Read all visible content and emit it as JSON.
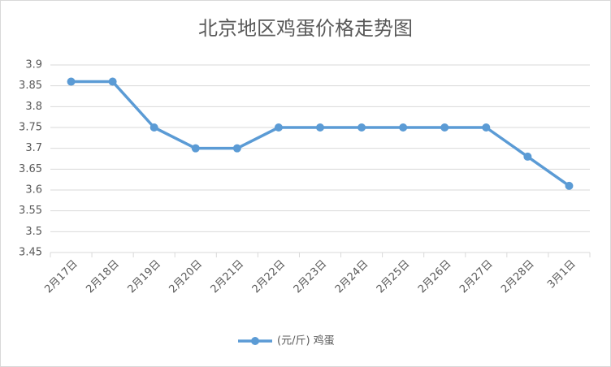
{
  "chart_data": {
    "type": "line",
    "title": "北京地区鸡蛋价格走势图",
    "categories": [
      "2月17日",
      "2月18日",
      "2月19日",
      "2月20日",
      "2月21日",
      "2月22日",
      "2月23日",
      "2月24日",
      "2月25日",
      "2月26日",
      "2月27日",
      "2月28日",
      "3月1日"
    ],
    "series": [
      {
        "name": "(元/斤) 鸡蛋",
        "color": "#5b9bd5",
        "values": [
          3.86,
          3.86,
          3.75,
          3.7,
          3.7,
          3.75,
          3.75,
          3.75,
          3.75,
          3.75,
          3.75,
          3.68,
          3.61
        ]
      }
    ],
    "ylim": [
      3.45,
      3.9
    ],
    "yticks": [
      3.45,
      3.5,
      3.55,
      3.6,
      3.65,
      3.7,
      3.75,
      3.8,
      3.85,
      3.9
    ],
    "grid": true,
    "legend": "bottom"
  }
}
